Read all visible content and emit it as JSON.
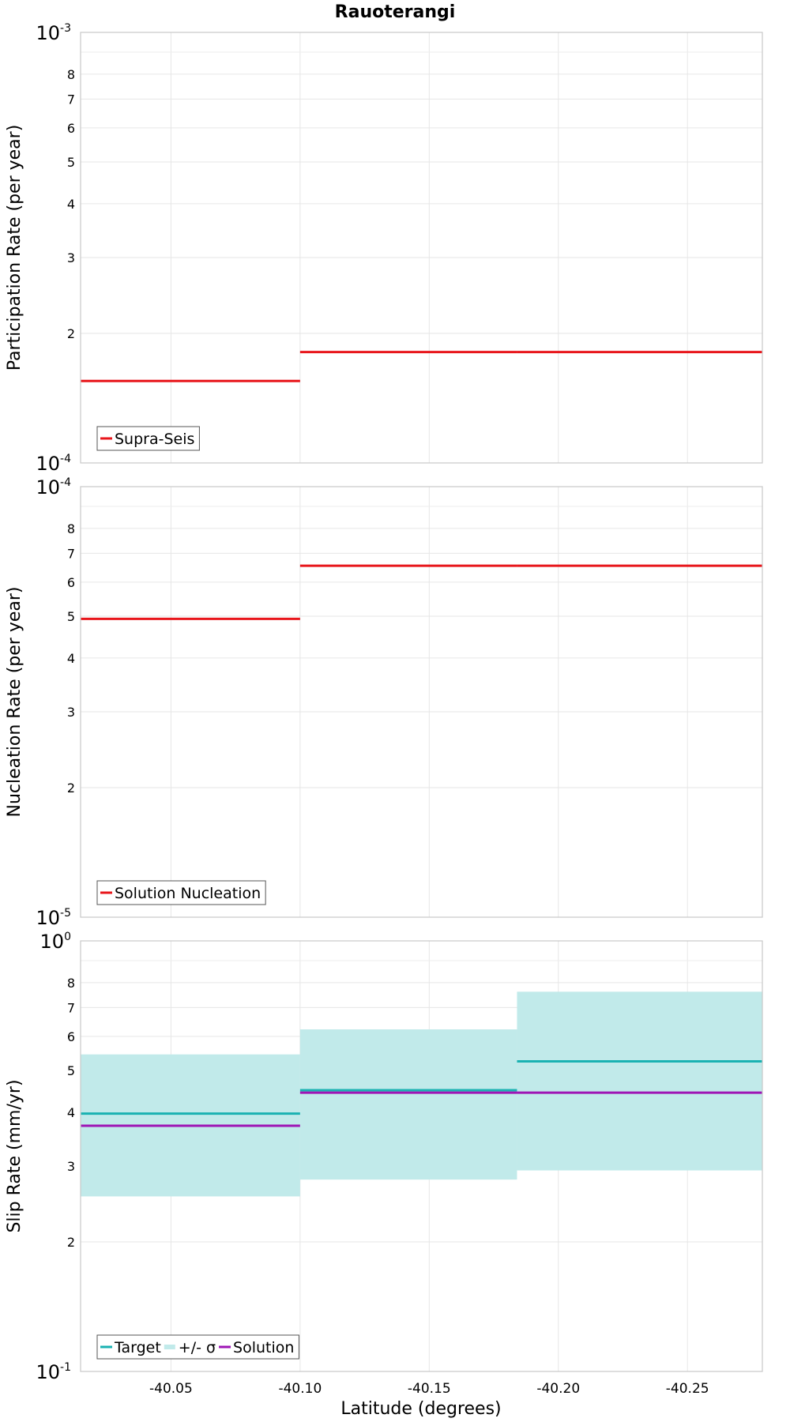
{
  "chart_data": {
    "title": "Rauoterangi",
    "xlabel": "Latitude (degrees)",
    "x_ticks": [
      "-40.05",
      "-40.10",
      "-40.15",
      "-40.20",
      "-40.25"
    ],
    "x_tick_values": [
      -40.05,
      -40.1,
      -40.15,
      -40.2,
      -40.25
    ],
    "xlim": [
      -40.015,
      -40.279
    ],
    "segments": [
      [
        -40.015,
        -40.1
      ],
      [
        -40.1,
        -40.184
      ],
      [
        -40.184,
        -40.279
      ]
    ],
    "panels": [
      {
        "type": "line",
        "ylabel": "Participation Rate (per year)",
        "yscale": "log",
        "ylim": [
          0.0001,
          0.001
        ],
        "decade_labels": [
          {
            "base": "10",
            "exp": "-3"
          },
          {
            "base": "10",
            "exp": "-4"
          }
        ],
        "minor_ticks": [
          "2",
          "3",
          "4",
          "5",
          "6",
          "7",
          "8"
        ],
        "legend": [
          "Supra-Seis"
        ],
        "legend_position": "bottom-left",
        "series": [
          {
            "name": "Supra-Seis",
            "color": "#e8161b",
            "values": [
              0.000155,
              0.000181,
              0.000181
            ]
          }
        ]
      },
      {
        "type": "line",
        "ylabel": "Nucleation Rate (per year)",
        "yscale": "log",
        "ylim": [
          1e-05,
          0.0001
        ],
        "decade_labels": [
          {
            "base": "10",
            "exp": "-4"
          },
          {
            "base": "10",
            "exp": "-5"
          }
        ],
        "minor_ticks": [
          "2",
          "3",
          "4",
          "5",
          "6",
          "7",
          "8"
        ],
        "legend": [
          "Solution Nucleation"
        ],
        "legend_position": "bottom-left",
        "series": [
          {
            "name": "Solution Nucleation",
            "color": "#e8161b",
            "values": [
              4.93e-05,
              6.55e-05,
              6.55e-05
            ]
          }
        ]
      },
      {
        "type": "area",
        "ylabel": "Slip Rate (mm/yr)",
        "yscale": "log",
        "ylim": [
          0.1,
          1
        ],
        "decade_labels": [
          {
            "base": "10",
            "exp": "0"
          },
          {
            "base": "10",
            "exp": "-1"
          }
        ],
        "minor_ticks": [
          "2",
          "3",
          "4",
          "5",
          "6",
          "7",
          "8"
        ],
        "legend": [
          "Target",
          "+/- σ",
          "Solution"
        ],
        "legend_position": "bottom-left",
        "band": {
          "name": "+/- σ",
          "color": "#c1eaea",
          "lower": [
            0.255,
            0.279,
            0.293
          ],
          "upper": [
            0.545,
            0.623,
            0.762
          ]
        },
        "series": [
          {
            "name": "Target",
            "color": "#1ab2b2",
            "values": [
              0.397,
              0.45,
              0.525
            ]
          },
          {
            "name": "Solution",
            "color": "#9e15b5",
            "values": [
              0.372,
              0.444,
              0.444
            ]
          }
        ]
      }
    ]
  }
}
